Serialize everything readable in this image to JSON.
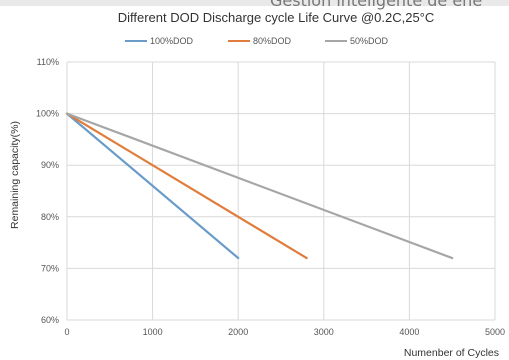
{
  "overlay": {
    "text": "Gestion inteligente de ene"
  },
  "chart_data": {
    "type": "line",
    "title": "Different DOD Discharge cycle Life Curve @0.2C,25°C",
    "xlabel": "Numenber of Cycles",
    "ylabel": "Remaining capacity(%)",
    "xlim": [
      0,
      5000
    ],
    "ylim": [
      60,
      110
    ],
    "x_ticks": [
      "0",
      "1000",
      "2000",
      "3000",
      "4000",
      "5000"
    ],
    "y_ticks": [
      "60%",
      "70%",
      "80%",
      "90%",
      "100%",
      "110%"
    ],
    "grid": true,
    "legend_position": "top",
    "series": [
      {
        "name": "100%DOD",
        "color": "#6a9bc9",
        "x": [
          0,
          2000
        ],
        "y": [
          100,
          72
        ]
      },
      {
        "name": "80%DOD",
        "color": "#e07d3c",
        "x": [
          0,
          2800
        ],
        "y": [
          100,
          72
        ]
      },
      {
        "name": "50%DOD",
        "color": "#a6a6a6",
        "x": [
          0,
          4500
        ],
        "y": [
          100,
          72
        ]
      }
    ]
  }
}
